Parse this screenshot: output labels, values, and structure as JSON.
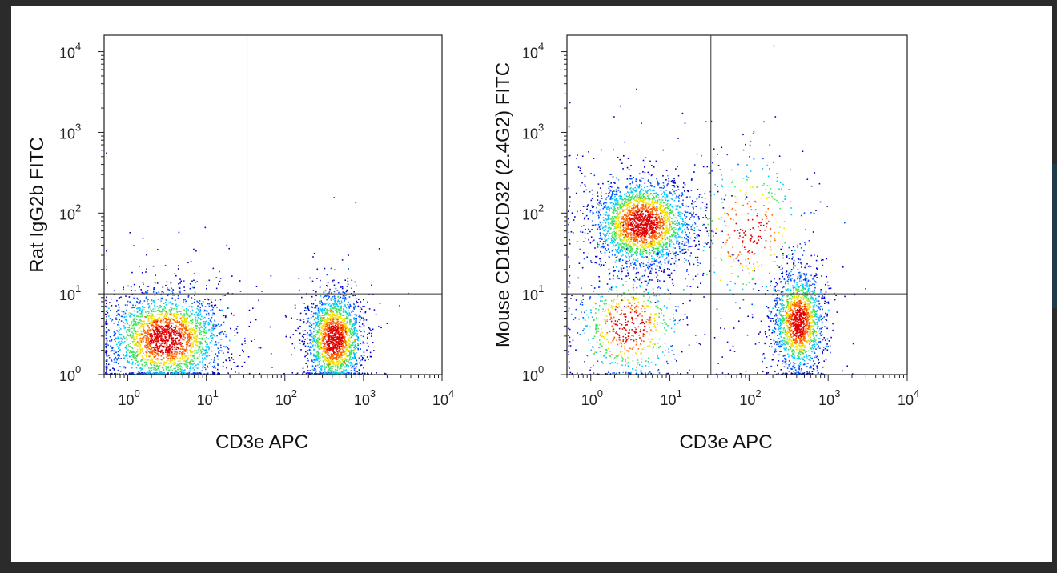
{
  "chart_data": [
    {
      "type": "scatter",
      "subtype": "flow-cytometry-density-dot-plot",
      "xlabel": "CD3e APC",
      "ylabel": "Rat IgG2b FITC",
      "x_scale": "log",
      "y_scale": "log",
      "xlim": [
        0.5,
        10000
      ],
      "ylim": [
        1,
        16000
      ],
      "x_ticks": [
        {
          "base": "10",
          "exp": "0"
        },
        {
          "base": "10",
          "exp": "1"
        },
        {
          "base": "10",
          "exp": "2"
        },
        {
          "base": "10",
          "exp": "3"
        },
        {
          "base": "10",
          "exp": "4"
        }
      ],
      "y_ticks": [
        {
          "base": "10",
          "exp": "0"
        },
        {
          "base": "10",
          "exp": "1"
        },
        {
          "base": "10",
          "exp": "2"
        },
        {
          "base": "10",
          "exp": "3"
        },
        {
          "base": "10",
          "exp": "4"
        }
      ],
      "quadrant_gate": {
        "x": 33,
        "y": 10
      },
      "populations": [
        {
          "label_on_chart": "",
          "center_x": 3,
          "center_y": 2.8,
          "spread_x_log": 0.38,
          "spread_y_log": 0.3,
          "events": 2600
        },
        {
          "label_on_chart": "",
          "center_x": 420,
          "center_y": 2.8,
          "spread_x_log": 0.18,
          "spread_y_log": 0.3,
          "events": 2000
        }
      ],
      "color_scale": [
        "#0000c8",
        "#0050ff",
        "#00c8ff",
        "#40e060",
        "#f0e000",
        "#ff6000",
        "#e00000"
      ],
      "grid": false,
      "legend": "none"
    },
    {
      "type": "scatter",
      "subtype": "flow-cytometry-density-dot-plot",
      "xlabel": "CD3e APC",
      "ylabel": "Mouse CD16/CD32 (2.4G2) FITC",
      "x_scale": "log",
      "y_scale": "log",
      "xlim": [
        0.5,
        10000
      ],
      "ylim": [
        1,
        16000
      ],
      "x_ticks": [
        {
          "base": "10",
          "exp": "0"
        },
        {
          "base": "10",
          "exp": "1"
        },
        {
          "base": "10",
          "exp": "2"
        },
        {
          "base": "10",
          "exp": "3"
        },
        {
          "base": "10",
          "exp": "4"
        }
      ],
      "y_ticks": [
        {
          "base": "10",
          "exp": "0"
        },
        {
          "base": "10",
          "exp": "1"
        },
        {
          "base": "10",
          "exp": "2"
        },
        {
          "base": "10",
          "exp": "3"
        },
        {
          "base": "10",
          "exp": "4"
        }
      ],
      "quadrant_gate": {
        "x": 33,
        "y": 10
      },
      "populations": [
        {
          "label_on_chart": "",
          "center_x": 4.5,
          "center_y": 75,
          "spread_x_log": 0.32,
          "spread_y_log": 0.28,
          "events": 2600
        },
        {
          "label_on_chart": "",
          "center_x": 420,
          "center_y": 4.5,
          "spread_x_log": 0.16,
          "spread_y_log": 0.32,
          "events": 1700
        },
        {
          "label_on_chart": "",
          "center_x": 3,
          "center_y": 4,
          "spread_x_log": 0.35,
          "spread_y_log": 0.35,
          "events": 700
        },
        {
          "label_on_chart": "",
          "center_x": 100,
          "center_y": 60,
          "spread_x_log": 0.4,
          "spread_y_log": 0.5,
          "events": 400
        }
      ],
      "color_scale": [
        "#0000c8",
        "#0050ff",
        "#00c8ff",
        "#40e060",
        "#f0e000",
        "#ff6000",
        "#e00000"
      ],
      "grid": false,
      "legend": "none"
    }
  ]
}
